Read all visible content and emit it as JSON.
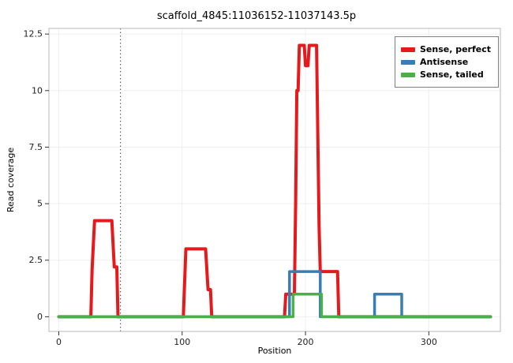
{
  "chart_data": {
    "type": "line",
    "title": "scaffold_4845:11036152-11037143.5p",
    "xlabel": "Position",
    "ylabel": "Read coverage",
    "xlim": [
      -8,
      358
    ],
    "ylim": [
      -0.65,
      12.75
    ],
    "x_ticks": [
      0,
      100,
      200,
      300
    ],
    "y_ticks": [
      0,
      2.5,
      5,
      7.5,
      10,
      12.5
    ],
    "grid": "light",
    "panel_border_color": "#b8b8b8",
    "gridline_color": "#efefef",
    "vline": {
      "x": 50,
      "style": "dotted",
      "color": "#444444"
    },
    "legend_position": "top-right",
    "series": [
      {
        "name": "Sense, perfect",
        "color": "#e41a1c",
        "width": 4,
        "points": [
          [
            0,
            0
          ],
          [
            26,
            0
          ],
          [
            27,
            2.1
          ],
          [
            29,
            4.25
          ],
          [
            43,
            4.25
          ],
          [
            45,
            2.2
          ],
          [
            47,
            2.2
          ],
          [
            48,
            0
          ],
          [
            101,
            0
          ],
          [
            102,
            1.5
          ],
          [
            103,
            3
          ],
          [
            119,
            3
          ],
          [
            121,
            1.2
          ],
          [
            123,
            1.2
          ],
          [
            124,
            0
          ],
          [
            183,
            0
          ],
          [
            184,
            1
          ],
          [
            191,
            1
          ],
          [
            192,
            5
          ],
          [
            193,
            10
          ],
          [
            194,
            10
          ],
          [
            195,
            12
          ],
          [
            199,
            12
          ],
          [
            200,
            11.1
          ],
          [
            202,
            11.1
          ],
          [
            203,
            12
          ],
          [
            209,
            12
          ],
          [
            210,
            8
          ],
          [
            211,
            4
          ],
          [
            212,
            2
          ],
          [
            226,
            2
          ],
          [
            227,
            0
          ],
          [
            350,
            0
          ]
        ]
      },
      {
        "name": "Antisense",
        "color": "#377eb8",
        "width": 3.5,
        "points": [
          [
            0,
            0
          ],
          [
            187,
            0
          ],
          [
            187,
            2
          ],
          [
            212,
            2
          ],
          [
            212,
            0
          ],
          [
            256,
            0
          ],
          [
            256,
            1
          ],
          [
            278,
            1
          ],
          [
            278,
            0
          ],
          [
            350,
            0
          ]
        ]
      },
      {
        "name": "Sense, tailed",
        "color": "#4daf4a",
        "width": 3.5,
        "points": [
          [
            0,
            0
          ],
          [
            190,
            0
          ],
          [
            190,
            1
          ],
          [
            213,
            1
          ],
          [
            213,
            0
          ],
          [
            350,
            0
          ]
        ]
      }
    ]
  }
}
